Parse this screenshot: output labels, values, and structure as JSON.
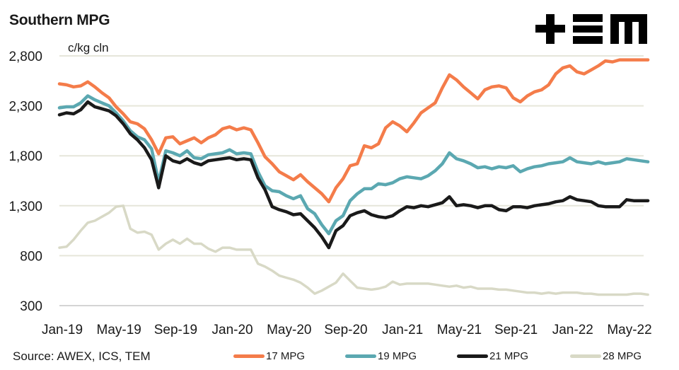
{
  "header": {
    "title": "Southern MPG",
    "unit_label": "c/kg cln",
    "logo_text": "TEM"
  },
  "footer": {
    "source": "Source: AWEX, ICS, TEM"
  },
  "chart_data": {
    "type": "line",
    "title": "Southern MPG",
    "ylabel": "c/kg cln",
    "xlabel": "",
    "ylim": [
      300,
      2800
    ],
    "yticks": [
      300,
      800,
      1300,
      1800,
      2300,
      2800
    ],
    "ytick_labels": [
      "300",
      "800",
      "1,300",
      "1,800",
      "2,300",
      "2,800"
    ],
    "xtick_labels": [
      "Jan-19",
      "May-19",
      "Sep-19",
      "Jan-20",
      "May-20",
      "Sep-20",
      "Jan-21",
      "May-21",
      "Sep-21",
      "Jan-22",
      "May-22"
    ],
    "grid": "horizontal",
    "legend": "bottom",
    "x_months": [
      0,
      0.5,
      1,
      1.5,
      2,
      2.5,
      3,
      3.5,
      4,
      4.5,
      5,
      5.5,
      6,
      6.5,
      7,
      7.5,
      8,
      8.5,
      9,
      9.5,
      10,
      10.5,
      11,
      11.5,
      12,
      12.5,
      13,
      13.5,
      14,
      14.5,
      15,
      15.5,
      16,
      16.5,
      17,
      17.5,
      18,
      18.5,
      19,
      19.5,
      20,
      20.5,
      21,
      21.5,
      22,
      22.5,
      23,
      23.5,
      24,
      24.5,
      25,
      25.5,
      26,
      26.5,
      27,
      27.5,
      28,
      28.5,
      29,
      29.5,
      30,
      30.5,
      31,
      31.5,
      32,
      32.5,
      33,
      33.5,
      34,
      34.5,
      35,
      35.5,
      36,
      36.5,
      37,
      37.5,
      38,
      38.5,
      39,
      39.5,
      40,
      40.5,
      41,
      41.5
    ],
    "series": [
      {
        "name": "17 MPG",
        "color": "#f47c4a",
        "values": [
          2520,
          2510,
          2490,
          2500,
          2540,
          2490,
          2430,
          2380,
          2290,
          2220,
          2140,
          2120,
          2070,
          1960,
          1820,
          1980,
          1990,
          1920,
          1950,
          1980,
          1930,
          1980,
          2010,
          2070,
          2090,
          2060,
          2080,
          2060,
          1930,
          1790,
          1720,
          1640,
          1600,
          1560,
          1610,
          1540,
          1480,
          1420,
          1340,
          1480,
          1570,
          1700,
          1720,
          1900,
          1880,
          1920,
          2080,
          2140,
          2100,
          2040,
          2130,
          2230,
          2280,
          2330,
          2480,
          2610,
          2560,
          2490,
          2430,
          2370,
          2460,
          2490,
          2500,
          2480,
          2380,
          2340,
          2400,
          2440,
          2460,
          2510,
          2620,
          2680,
          2700,
          2640,
          2620,
          2660,
          2700,
          2750,
          2740,
          2760,
          2760,
          2760,
          2760,
          2760
        ]
      },
      {
        "name": "19 MPG",
        "color": "#5ba8b1",
        "values": [
          2280,
          2290,
          2290,
          2330,
          2400,
          2360,
          2330,
          2300,
          2230,
          2150,
          2050,
          1990,
          1960,
          1870,
          1540,
          1850,
          1830,
          1800,
          1850,
          1780,
          1770,
          1810,
          1820,
          1830,
          1860,
          1820,
          1830,
          1820,
          1640,
          1500,
          1450,
          1440,
          1400,
          1370,
          1400,
          1270,
          1220,
          1110,
          1020,
          1150,
          1200,
          1350,
          1420,
          1470,
          1470,
          1520,
          1510,
          1530,
          1570,
          1590,
          1580,
          1570,
          1600,
          1650,
          1720,
          1830,
          1770,
          1750,
          1720,
          1680,
          1690,
          1670,
          1690,
          1680,
          1700,
          1640,
          1670,
          1690,
          1700,
          1720,
          1730,
          1740,
          1780,
          1740,
          1730,
          1720,
          1740,
          1720,
          1730,
          1740,
          1770,
          1760,
          1750,
          1740
        ]
      },
      {
        "name": "21 MPG",
        "color": "#1a1a1a",
        "values": [
          2210,
          2230,
          2220,
          2260,
          2340,
          2290,
          2270,
          2250,
          2200,
          2120,
          2020,
          1960,
          1880,
          1760,
          1480,
          1800,
          1750,
          1730,
          1770,
          1730,
          1710,
          1750,
          1760,
          1770,
          1780,
          1760,
          1770,
          1760,
          1580,
          1460,
          1290,
          1260,
          1240,
          1210,
          1220,
          1150,
          1080,
          990,
          880,
          1050,
          1100,
          1200,
          1230,
          1250,
          1210,
          1190,
          1180,
          1200,
          1250,
          1290,
          1280,
          1300,
          1290,
          1310,
          1330,
          1390,
          1300,
          1310,
          1300,
          1280,
          1300,
          1300,
          1260,
          1250,
          1290,
          1290,
          1280,
          1300,
          1310,
          1320,
          1340,
          1350,
          1390,
          1360,
          1350,
          1340,
          1300,
          1290,
          1290,
          1290,
          1360,
          1350,
          1350,
          1350
        ]
      },
      {
        "name": "28 MPG",
        "color": "#d8d9c6",
        "values": [
          880,
          890,
          960,
          1050,
          1130,
          1150,
          1190,
          1230,
          1290,
          1300,
          1070,
          1030,
          1040,
          1010,
          860,
          920,
          960,
          920,
          970,
          920,
          920,
          870,
          840,
          880,
          880,
          860,
          860,
          860,
          720,
          690,
          650,
          600,
          580,
          560,
          530,
          480,
          420,
          450,
          490,
          530,
          620,
          550,
          480,
          470,
          460,
          470,
          490,
          540,
          510,
          520,
          520,
          520,
          520,
          510,
          500,
          490,
          500,
          480,
          490,
          470,
          470,
          470,
          460,
          460,
          450,
          440,
          430,
          430,
          420,
          430,
          420,
          430,
          430,
          430,
          420,
          420,
          410,
          410,
          410,
          410,
          410,
          420,
          420,
          410
        ]
      }
    ]
  }
}
